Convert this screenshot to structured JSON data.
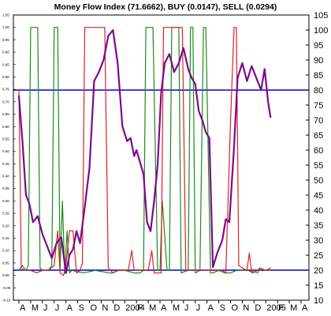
{
  "chart_data": {
    "type": "line",
    "title": "Money Flow Index (71.6662), BUY (0.0147), SELL (0.0294)",
    "xlabel": "",
    "ylabel": "",
    "x_ticks": [
      "A",
      "M",
      "J",
      "J",
      "A",
      "S",
      "O",
      "N",
      "D",
      "2004",
      "F",
      "M",
      "A",
      "M",
      "J",
      "J",
      "A",
      "S",
      "O",
      "N",
      "D",
      "2005",
      "F",
      "M",
      "A"
    ],
    "y_right_ticks": [
      10,
      15,
      20,
      25,
      30,
      35,
      40,
      45,
      50,
      55,
      60,
      65,
      70,
      75,
      80,
      85,
      90,
      95,
      100,
      105
    ],
    "ylim_right": [
      10,
      105
    ],
    "y_left_ticks": [
      "-0.10",
      "-0.05",
      "0.00",
      "0.05",
      "0.10",
      "0.15",
      "0.20",
      "0.25",
      "0.30",
      "0.35",
      "0.40",
      "0.45",
      "0.50",
      "0.55",
      "0.60",
      "0.65",
      "0.70",
      "0.75",
      "0.80",
      "0.85",
      "0.90",
      "0.95",
      "1.00",
      "1.05"
    ],
    "ylim_left": [
      -0.1,
      1.05
    ],
    "hlines": [
      {
        "y": 80,
        "color": "#0000cc"
      },
      {
        "y": 20,
        "color": "#0000cc"
      }
    ],
    "series": [
      {
        "axis": "right",
        "color": "#7a0a8a",
        "width": 2.2,
        "x": [
          0,
          0.3,
          0.6,
          0.9,
          1.2,
          1.6,
          2.0,
          2.4,
          2.8,
          3.2,
          3.6,
          4.0,
          4.3,
          4.6,
          4.9,
          5.2,
          5.6,
          6.0,
          6.4,
          6.8,
          7.2,
          7.6,
          8.0,
          8.4,
          8.8,
          9.2,
          9.5,
          9.8,
          10.0,
          10.3,
          10.6,
          10.9,
          11.2,
          11.5,
          11.8,
          12.1,
          12.4,
          12.8,
          13.2,
          13.6,
          14.0,
          14.4,
          14.7,
          15.0,
          15.3,
          15.6,
          15.9,
          16.2,
          16.5,
          16.9,
          17.3,
          17.6,
          17.9,
          18.3,
          18.6,
          19.0,
          19.4,
          19.8,
          20.2,
          20.6,
          20.9,
          21.2,
          21.4
        ],
        "y": [
          78,
          63,
          45,
          42,
          36,
          38,
          32,
          28,
          24,
          29,
          31,
          19,
          25,
          27,
          33,
          29,
          41,
          54,
          83,
          86,
          90,
          98,
          100,
          89,
          68,
          63,
          64,
          58,
          60,
          56,
          52,
          36,
          33,
          43,
          55,
          79,
          89,
          92,
          86,
          89,
          94,
          87,
          84,
          82,
          73,
          70,
          66,
          64,
          21,
          26,
          30,
          37,
          36,
          61,
          84,
          89,
          83,
          88,
          84,
          80,
          87,
          76,
          71
        ]
      },
      {
        "axis": "left",
        "color": "#e02020",
        "width": 1.2,
        "x": [
          0,
          0.1,
          0.2,
          0.5,
          1.0,
          1.5,
          2.0,
          2.5,
          3.0,
          3.3,
          3.5,
          3.8,
          4.0,
          4.3,
          4.6,
          4.9,
          5.2,
          5.4,
          5.6,
          5.8,
          6.4,
          7.3,
          7.6,
          8.0,
          8.4,
          9.3,
          9.6,
          9.8,
          10.0,
          11.0,
          11.3,
          11.5,
          12.1,
          12.3,
          13.0,
          13.6,
          13.9,
          14.2,
          14.5,
          15.0,
          15.5,
          16.0,
          16.5,
          17.0,
          17.3,
          17.6,
          18.0,
          18.3,
          18.5,
          18.7,
          19.0,
          19.4,
          19.6,
          19.8,
          20.0,
          20.3,
          20.5,
          21.0,
          21.4
        ],
        "y": [
          0.75,
          0.42,
          0.03,
          0.02,
          0.02,
          0.01,
          0.02,
          0.02,
          0.04,
          0.18,
          0.01,
          0.0,
          0.04,
          0.18,
          0.18,
          0.01,
          0.02,
          0.05,
          1.0,
          1.0,
          1.0,
          1.0,
          0.03,
          0.01,
          0.02,
          0.02,
          0.1,
          0.02,
          0.02,
          0.02,
          0.1,
          0.01,
          0.01,
          1.0,
          1.0,
          1.0,
          1.0,
          0.02,
          0.02,
          0.02,
          0.02,
          0.02,
          0.02,
          0.02,
          0.02,
          0.01,
          0.62,
          1.0,
          1.0,
          0.04,
          0.03,
          0.02,
          0.09,
          0.01,
          0.02,
          0.01,
          0.03,
          0.02,
          0.03
        ]
      },
      {
        "axis": "left",
        "color": "#1a8a1a",
        "width": 1.2,
        "x": [
          0,
          0.3,
          0.6,
          0.8,
          1.0,
          1.3,
          1.6,
          1.8,
          2.0,
          2.5,
          2.8,
          3.0,
          3.3,
          3.5,
          3.7,
          3.9,
          4.1,
          4.3,
          4.5,
          5.5,
          6.5,
          7.7,
          7.9,
          8.5,
          9.0,
          9.8,
          10.3,
          10.6,
          10.8,
          11.0,
          11.2,
          11.4,
          11.8,
          12.0,
          12.2,
          12.6,
          12.8,
          13.0,
          13.4,
          13.6,
          13.8,
          14.4,
          14.6,
          14.8,
          15.0,
          15.4,
          15.7,
          15.9,
          16.3,
          16.5,
          17.0,
          17.5,
          18.0,
          18.5,
          19.0,
          19.5,
          20.0,
          20.5,
          21.0,
          21.4
        ],
        "y": [
          0.02,
          0.04,
          0.02,
          0.04,
          1.0,
          1.0,
          1.0,
          0.03,
          0.02,
          0.02,
          0.04,
          1.0,
          1.0,
          0.02,
          0.3,
          0.01,
          0.18,
          0.01,
          0.02,
          0.01,
          0.02,
          0.01,
          0.01,
          0.02,
          0.02,
          0.01,
          0.01,
          0.02,
          1.0,
          1.0,
          1.0,
          1.0,
          0.02,
          0.02,
          0.3,
          0.02,
          0.02,
          1.0,
          1.0,
          1.0,
          0.01,
          0.02,
          1.0,
          1.0,
          0.01,
          0.02,
          1.0,
          1.0,
          0.01,
          0.01,
          0.02,
          0.01,
          0.01,
          0.02,
          0.02,
          0.02,
          0.01,
          0.03,
          0.02,
          0.02
        ]
      }
    ],
    "grid": false,
    "legend": "none"
  }
}
